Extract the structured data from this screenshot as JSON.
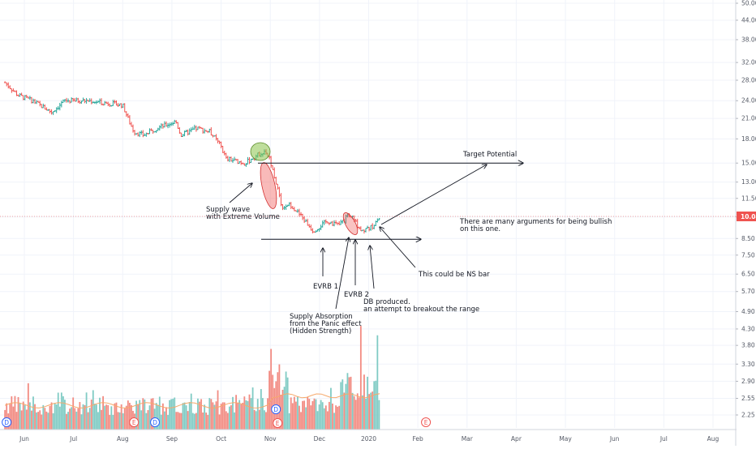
{
  "chart_data": {
    "type": "candlestick",
    "scale": "log",
    "grid": true,
    "price_axis": {
      "ticks": [
        "50.00",
        "44.00",
        "38.00",
        "32.00",
        "28.00",
        "24.00",
        "21.00",
        "18.00",
        "15.00",
        "13.00",
        "11.50",
        "10.00",
        "8.50",
        "7.50",
        "6.50",
        "5.70",
        "4.90",
        "4.30",
        "3.80",
        "3.30",
        "2.90",
        "2.55",
        "2.25"
      ],
      "last_price": "10.04",
      "last_price_color": "#ef5350"
    },
    "time_axis": {
      "ticks": [
        "Jun",
        "Jul",
        "Aug",
        "Sep",
        "Oct",
        "Nov",
        "Dec",
        "2020",
        "Feb",
        "Mar",
        "Apr",
        "May",
        "Jun",
        "Jul",
        "Aug"
      ]
    },
    "colors": {
      "up": "#26a69a",
      "down": "#ef5350",
      "vol_up": "#80cbc4",
      "vol_down": "#f28b82"
    },
    "ohlc_anchors": [
      {
        "date": "2019-05-20",
        "close": 27.5
      },
      {
        "date": "2019-05-28",
        "close": 25.0
      },
      {
        "date": "2019-06-06",
        "close": 24.0
      },
      {
        "date": "2019-06-18",
        "close": 22.0
      },
      {
        "date": "2019-06-26",
        "close": 24.0
      },
      {
        "date": "2019-07-10",
        "close": 24.0
      },
      {
        "date": "2019-07-24",
        "close": 23.5
      },
      {
        "date": "2019-08-01",
        "close": 23.2
      },
      {
        "date": "2019-08-05",
        "close": 20.5
      },
      {
        "date": "2019-08-08",
        "close": 19.0
      },
      {
        "date": "2019-08-14",
        "close": 18.5
      },
      {
        "date": "2019-08-22",
        "close": 19.5
      },
      {
        "date": "2019-09-03",
        "close": 20.5
      },
      {
        "date": "2019-09-06",
        "close": 18.5
      },
      {
        "date": "2019-09-16",
        "close": 19.5
      },
      {
        "date": "2019-09-24",
        "close": 19.0
      },
      {
        "date": "2019-10-01",
        "close": 17.0
      },
      {
        "date": "2019-10-04",
        "close": 15.5
      },
      {
        "date": "2019-10-16",
        "close": 15.0
      },
      {
        "date": "2019-10-28",
        "close": 16.5
      },
      {
        "date": "2019-10-31",
        "close": 15.5
      },
      {
        "date": "2019-11-04",
        "close": 13.0
      },
      {
        "date": "2019-11-08",
        "close": 10.5
      },
      {
        "date": "2019-11-13",
        "close": 11.0
      },
      {
        "date": "2019-11-20",
        "close": 10.0
      },
      {
        "date": "2019-11-27",
        "close": 9.0
      },
      {
        "date": "2019-12-06",
        "close": 9.7
      },
      {
        "date": "2019-12-13",
        "close": 9.4
      },
      {
        "date": "2019-12-20",
        "close": 10.2
      },
      {
        "date": "2019-12-27",
        "close": 9.0
      },
      {
        "date": "2020-01-03",
        "close": 9.3
      },
      {
        "date": "2020-01-08",
        "close": 10.04
      }
    ],
    "volume_spikes": [
      {
        "date": "2019-11-01",
        "value": 3.7
      },
      {
        "date": "2019-11-04",
        "value": 2.9
      },
      {
        "date": "2019-12-27",
        "value": 4.4
      },
      {
        "date": "2020-01-06",
        "value": 4.1
      },
      {
        "date": "2019-12-20",
        "value": 3.0
      }
    ],
    "events": [
      {
        "date": "2019-05-21",
        "label": "D",
        "kind": "dividend"
      },
      {
        "date": "2019-08-08",
        "label": "E",
        "kind": "earnings"
      },
      {
        "date": "2019-08-21",
        "label": "D",
        "kind": "dividend"
      },
      {
        "date": "2019-11-04",
        "label": "D",
        "kind": "dividend"
      },
      {
        "date": "2019-11-04",
        "label": "E",
        "kind": "earnings"
      },
      {
        "date": "2020-02-05",
        "label": "E",
        "kind": "earnings"
      }
    ],
    "annotations": [
      {
        "name": "target-potential-label",
        "lines": [
          "Target Potential"
        ]
      },
      {
        "name": "supply-wave-label",
        "lines": [
          "Supply wave",
          "with Extreme Volume"
        ]
      },
      {
        "name": "bullish-args-label",
        "lines": [
          "There are many arguments for being bullish",
          "on this one."
        ]
      },
      {
        "name": "ns-bar-label",
        "lines": [
          "This could be NS bar"
        ]
      },
      {
        "name": "evrb1-label",
        "lines": [
          "EVRB 1"
        ]
      },
      {
        "name": "evrb2-label",
        "lines": [
          "EVRB 2"
        ]
      },
      {
        "name": "db-produced-label",
        "lines": [
          "DB produced.",
          "an attempt to breakout the range"
        ]
      },
      {
        "name": "supply-absorption-label",
        "lines": [
          "Supply Absorption",
          "from the Panic effect",
          "(Hidden Strength)"
        ]
      }
    ],
    "levels": [
      {
        "name": "target-line",
        "price": 15.0
      },
      {
        "name": "range-bottom-line",
        "price": 8.5
      }
    ]
  }
}
